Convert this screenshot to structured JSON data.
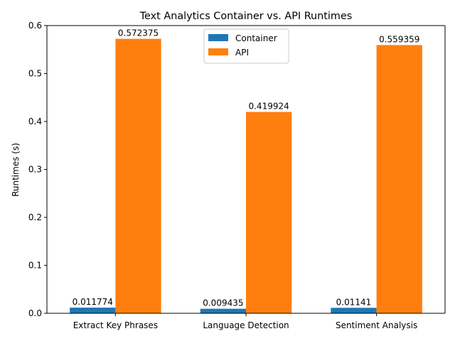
{
  "chart_data": {
    "type": "bar",
    "title": "Text Analytics Container vs. API Runtimes",
    "xlabel": "",
    "ylabel": "Runtimes (s)",
    "categories": [
      "Extract Key Phrases",
      "Language Detection",
      "Sentiment Analysis"
    ],
    "series": [
      {
        "name": "Container",
        "color": "#1f77b4",
        "values": [
          0.011774,
          0.009435,
          0.01141
        ],
        "labels": [
          "0.011774",
          "0.009435",
          "0.01141"
        ]
      },
      {
        "name": "API",
        "color": "#ff7f0e",
        "values": [
          0.572375,
          0.419924,
          0.559359
        ],
        "labels": [
          "0.572375",
          "0.419924",
          "0.559359"
        ]
      }
    ],
    "ylim": [
      0,
      0.6
    ],
    "yticks": [
      0.0,
      0.1,
      0.2,
      0.3,
      0.4,
      0.5,
      0.6
    ],
    "ytick_labels": [
      "0.0",
      "0.1",
      "0.2",
      "0.3",
      "0.4",
      "0.5",
      "0.6"
    ],
    "grid": false,
    "legend_position": "top-center"
  }
}
